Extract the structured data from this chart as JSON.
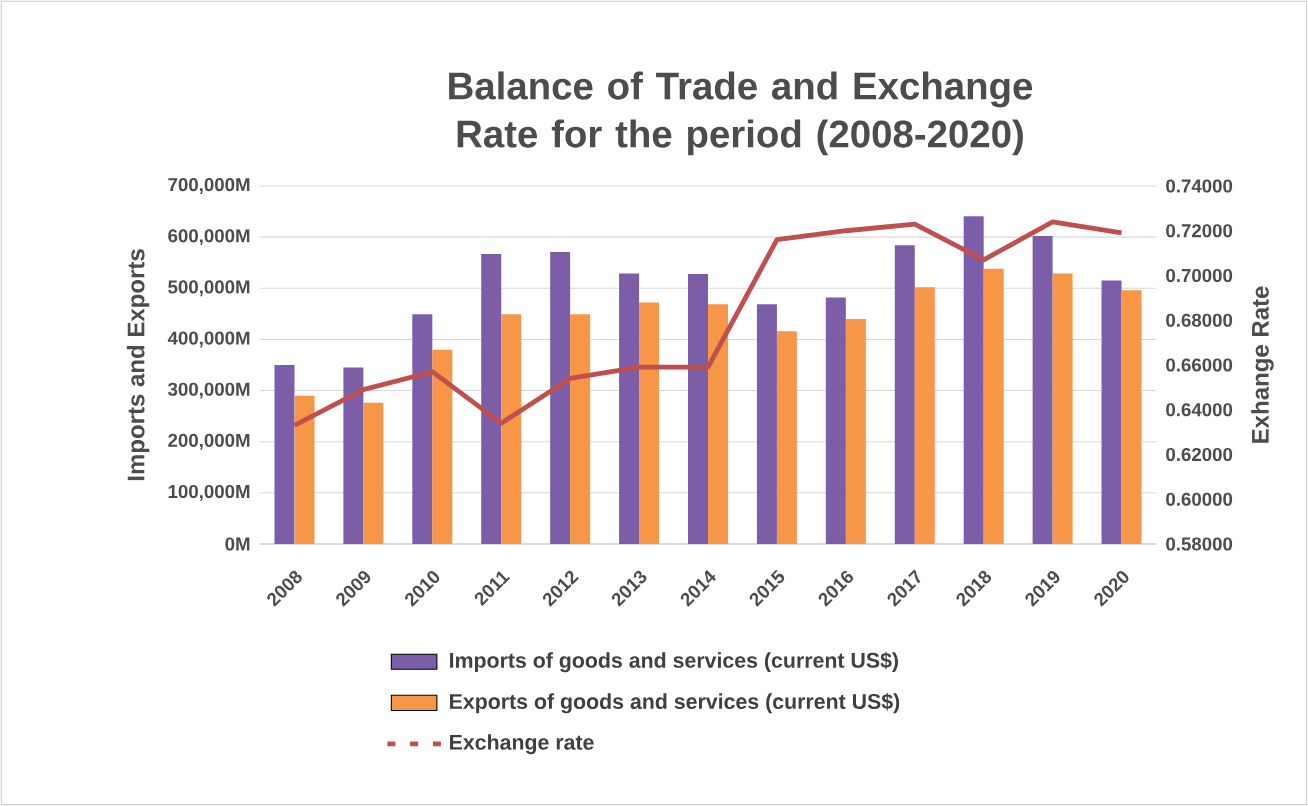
{
  "chart_data": {
    "type": "bar",
    "title": "Balance of Trade and Exchange Rate for the period (2008-2020)",
    "ylabel": "Imports and Exports",
    "y2label": "Exhange Rate",
    "categories": [
      "2008",
      "2009",
      "2010",
      "2011",
      "2012",
      "2013",
      "2014",
      "2015",
      "2016",
      "2017",
      "2018",
      "2019",
      "2020"
    ],
    "series": [
      {
        "name": "Imports of goods and services (current US$)",
        "color": "#7b5ea7",
        "values": [
          350000,
          345000,
          449000,
          567000,
          571000,
          529000,
          528000,
          469000,
          482000,
          584000,
          641000,
          602000,
          515000
        ]
      },
      {
        "name": "Exports of goods and services (current US$)",
        "color": "#f79646",
        "values": [
          290000,
          276000,
          380000,
          449000,
          449000,
          472000,
          469000,
          416000,
          440000,
          502000,
          538000,
          529000,
          496000
        ]
      },
      {
        "name": "Exchange rate",
        "type": "line",
        "axis": "y2",
        "color": "#c0504d",
        "values": [
          0.633,
          0.649,
          0.657,
          0.634,
          0.654,
          0.659,
          0.659,
          0.716,
          0.72,
          0.723,
          0.707,
          0.724,
          0.719
        ]
      }
    ],
    "ylim": [
      0,
      700000
    ],
    "yticks": [
      {
        "value": 0,
        "label": "0M"
      },
      {
        "value": 100000,
        "label": "100,000M"
      },
      {
        "value": 200000,
        "label": "200,000M"
      },
      {
        "value": 300000,
        "label": "300,000M"
      },
      {
        "value": 400000,
        "label": "400,000M"
      },
      {
        "value": 500000,
        "label": "500,000M"
      },
      {
        "value": 600000,
        "label": "600,000M"
      },
      {
        "value": 700000,
        "label": "700,000M"
      }
    ],
    "y2lim": [
      0.58,
      0.74
    ],
    "y2ticks": [
      {
        "value": 0.58,
        "label": "0.58000"
      },
      {
        "value": 0.6,
        "label": "0.60000"
      },
      {
        "value": 0.62,
        "label": "0.62000"
      },
      {
        "value": 0.64,
        "label": "0.64000"
      },
      {
        "value": 0.66,
        "label": "0.66000"
      },
      {
        "value": 0.68,
        "label": "0.68000"
      },
      {
        "value": 0.7,
        "label": "0.70000"
      },
      {
        "value": 0.72,
        "label": "0.72000"
      },
      {
        "value": 0.74,
        "label": "0.74000"
      }
    ],
    "grid": "y",
    "legend": "bottom",
    "marker": "none"
  }
}
